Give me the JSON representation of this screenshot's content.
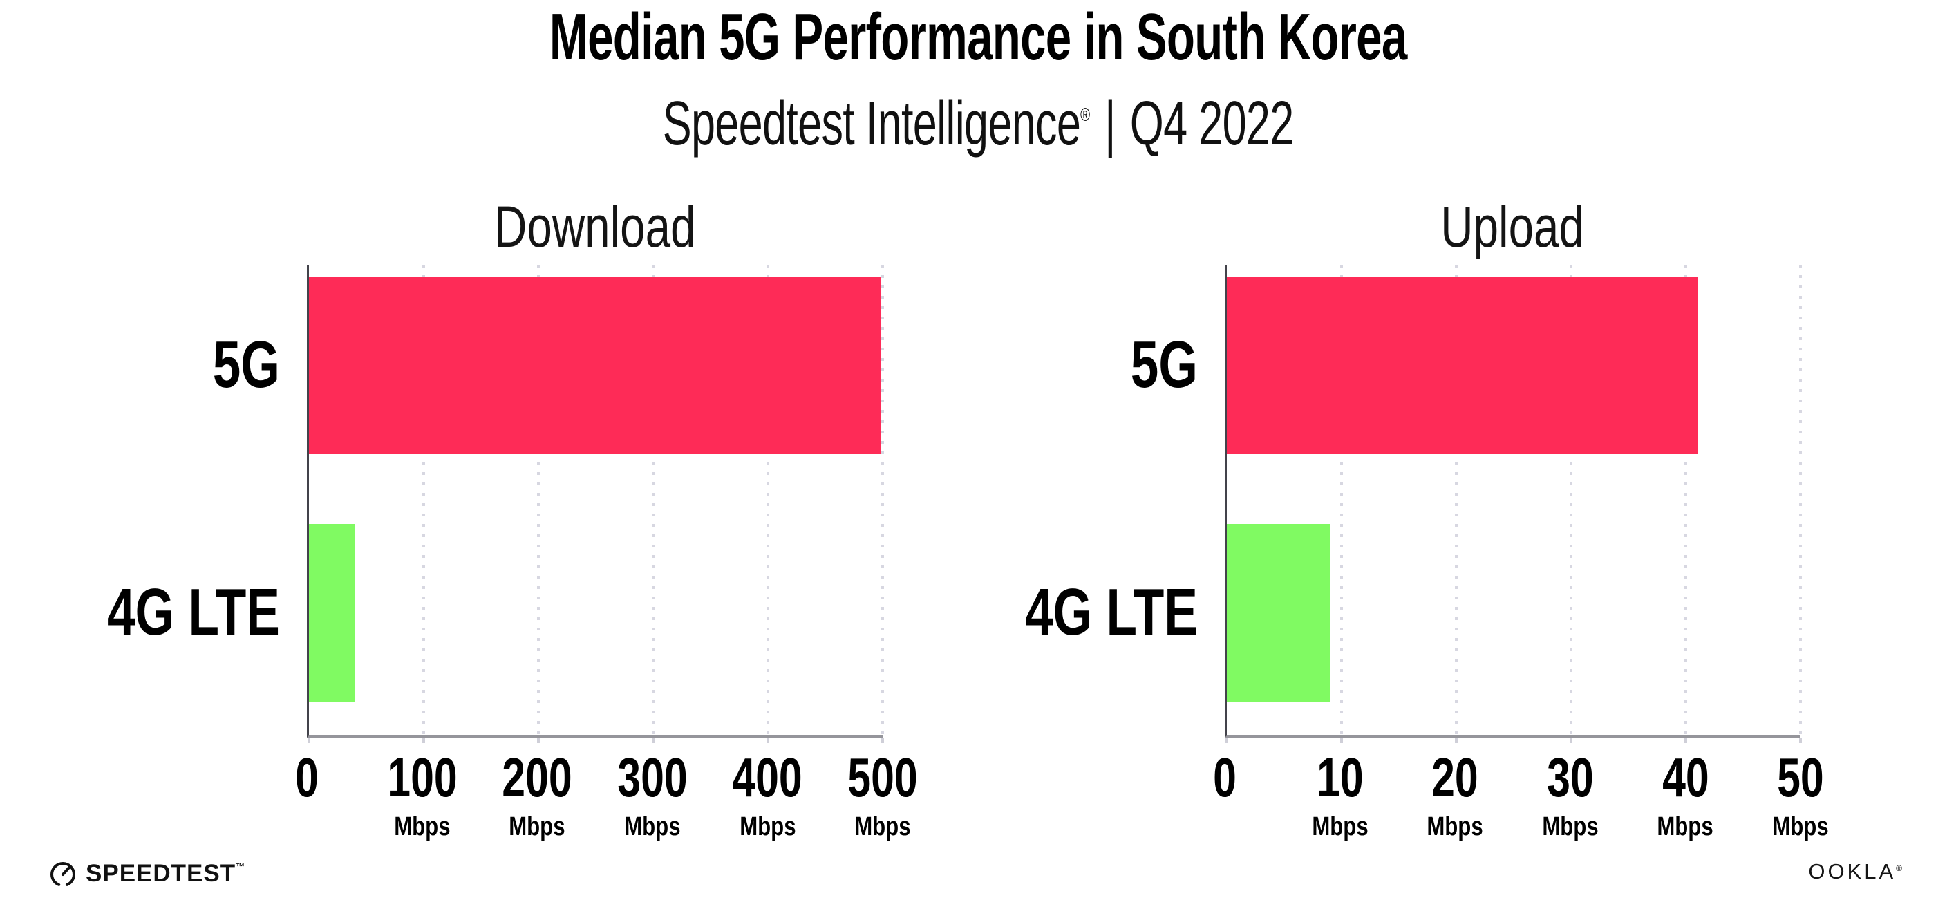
{
  "header": {
    "title": "Median 5G Performance in South Korea",
    "subtitle": {
      "brand": "Speedtest Intelligence",
      "reg": "®",
      "divider": "|",
      "period": "Q4 2022"
    }
  },
  "chart_data": [
    {
      "type": "bar",
      "orientation": "horizontal",
      "title": "Download",
      "categories": [
        "5G",
        "4G LTE"
      ],
      "values": [
        499,
        40
      ],
      "unit": "Mbps",
      "xlim": [
        0,
        500
      ],
      "xticks": [
        0,
        100,
        200,
        300,
        400,
        500
      ],
      "bar_colors": [
        "#FE2B57",
        "#80FA62"
      ],
      "grid": "vertical-dotted",
      "legend": "none"
    },
    {
      "type": "bar",
      "orientation": "horizontal",
      "title": "Upload",
      "categories": [
        "5G",
        "4G LTE"
      ],
      "values": [
        41,
        9
      ],
      "unit": "Mbps",
      "xlim": [
        0,
        50
      ],
      "xticks": [
        0,
        10,
        20,
        30,
        40,
        50
      ],
      "bar_colors": [
        "#FE2B57",
        "#80FA62"
      ],
      "grid": "vertical-dotted",
      "legend": "none"
    }
  ],
  "colors": {
    "bar_5g": "#FE2B57",
    "bar_4g_lte": "#80FA62",
    "gridline": "#d7d7e1",
    "y_axis": "#43434b",
    "x_axis": "#95959b",
    "text": "#000000"
  },
  "footer": {
    "speedtest": "SPEEDTEST",
    "speedtest_mark": "™",
    "ookla": "OOKLA",
    "ookla_mark": "®"
  }
}
